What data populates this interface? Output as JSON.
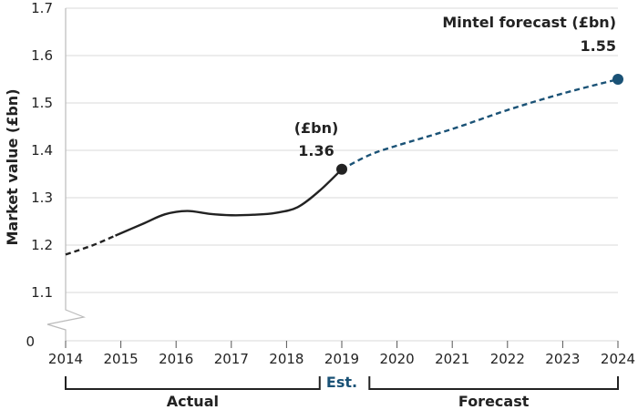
{
  "chart_data": {
    "type": "line",
    "ylabel": "Market value (£bn)",
    "xlabel": "",
    "ylim": [
      1.0,
      1.7
    ],
    "y_ticks": [
      "1.1",
      "1.2",
      "1.3",
      "1.4",
      "1.5",
      "1.6",
      "1.7"
    ],
    "y_zero_label": "0",
    "x_ticks": [
      "2014",
      "2015",
      "2016",
      "2017",
      "2018",
      "2019",
      "2020",
      "2021",
      "2022",
      "2023",
      "2024"
    ],
    "series": [
      {
        "segment": "actual-interpolated",
        "style": "dashed",
        "color": "#222222",
        "x": [
          2014.0,
          2014.5,
          2014.9
        ],
        "y": [
          1.18,
          1.2,
          1.22
        ]
      },
      {
        "segment": "actual",
        "style": "solid",
        "color": "#222222",
        "x": [
          2014.9,
          2015.4,
          2015.8,
          2016.2,
          2016.6,
          2017.0,
          2017.4,
          2017.8,
          2018.2,
          2018.6,
          2019.0
        ],
        "y": [
          1.22,
          1.245,
          1.265,
          1.272,
          1.266,
          1.263,
          1.264,
          1.268,
          1.28,
          1.315,
          1.36
        ]
      },
      {
        "segment": "forecast",
        "style": "dashed",
        "color": "#1a5276",
        "x": [
          2019.0,
          2019.5,
          2020.0,
          2021.0,
          2022.0,
          2023.0,
          2024.0
        ],
        "y": [
          1.36,
          1.39,
          1.41,
          1.445,
          1.485,
          1.52,
          1.55
        ]
      }
    ],
    "markers": [
      {
        "x": 2019,
        "y": 1.36,
        "color": "#222222"
      },
      {
        "x": 2024,
        "y": 1.55,
        "color": "#1a5276"
      }
    ],
    "annotations": [
      {
        "line1": "(£bn)",
        "line2": "1.36"
      },
      {
        "line1": "Mintel forecast (£bn)",
        "line2": "1.55"
      }
    ],
    "brackets": [
      {
        "label": "Actual",
        "color": "#222222",
        "from": 2014.0,
        "to": 2018.6
      },
      {
        "label": "Est.",
        "color": "#1a5276",
        "from": 2019.0,
        "to": 2019.0
      },
      {
        "label": "Forecast",
        "color": "#222222",
        "from": 2019.5,
        "to": 2024.0
      }
    ],
    "grid": "horizontal",
    "colors": {
      "actual": "#222222",
      "forecast": "#1a5276",
      "grid": "#d9d9d9"
    }
  }
}
